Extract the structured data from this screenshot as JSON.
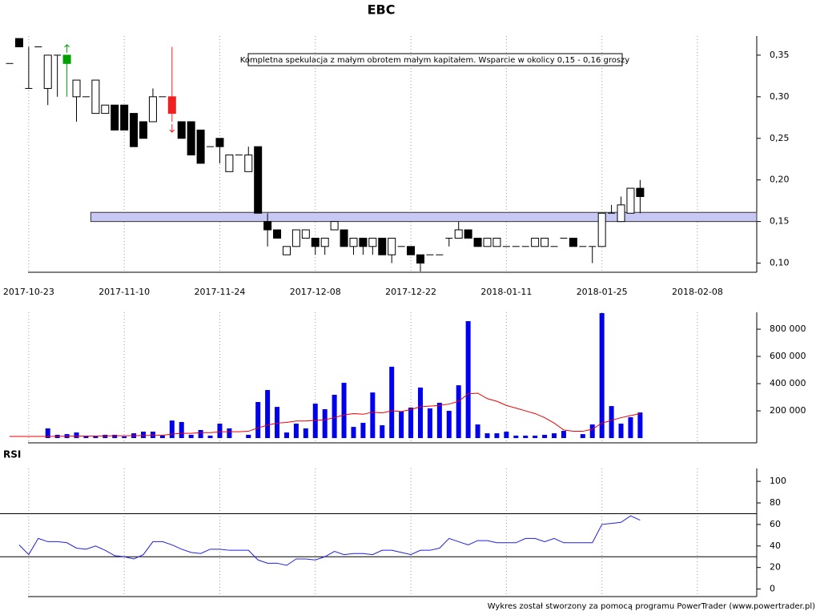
{
  "chart_data": [
    {
      "type": "candlestick",
      "title": "EBC",
      "annotation": "Kompletna spekulacja z małym obrotem małym kapitałem. Wsparcie w okolicy 0,15 - 0,16 groszy",
      "categories": [
        null,
        null,
        "2017-10-23",
        null,
        null,
        null,
        null,
        null,
        null,
        null,
        null,
        null,
        "2017-11-10",
        null,
        null,
        null,
        null,
        null,
        null,
        null,
        null,
        null,
        "2017-11-24",
        null,
        null,
        null,
        null,
        null,
        null,
        null,
        null,
        null,
        "2017-12-08",
        null,
        null,
        null,
        null,
        null,
        null,
        null,
        null,
        null,
        "2017-12-22",
        null,
        null,
        null,
        null,
        null,
        null,
        null,
        null,
        null,
        "2018-01-11",
        null,
        null,
        null,
        null,
        null,
        null,
        null,
        null,
        null,
        "2018-01-25",
        null,
        null,
        null,
        null,
        null,
        null,
        null,
        null,
        null,
        "2018-02-08"
      ],
      "open": [
        0.34,
        0.37,
        0.31,
        0.36,
        0.31,
        0.35,
        0.34,
        0.3,
        0.3,
        0.28,
        0.28,
        0.29,
        0.29,
        0.28,
        0.27,
        0.27,
        0.3,
        0.3,
        0.27,
        0.27,
        0.26,
        0.24,
        0.25,
        0.21,
        0.23,
        0.21,
        0.24,
        0.15,
        0.14,
        0.11,
        0.12,
        0.13,
        0.13,
        0.12,
        0.14,
        0.14,
        0.12,
        0.13,
        0.12,
        0.13,
        0.11,
        0.12,
        0.12,
        0.11,
        0.11,
        0.11,
        0.13,
        0.13,
        0.14,
        0.13,
        0.12,
        0.12,
        0.12,
        0.12,
        0.12,
        0.12,
        0.12,
        0.12,
        0.13,
        0.13,
        0.12,
        0.12,
        0.12,
        0.16,
        0.15,
        0.16,
        0.19,
        null,
        null,
        null,
        null,
        null,
        null
      ],
      "high": [
        0.34,
        0.37,
        0.36,
        0.36,
        0.35,
        0.35,
        0.35,
        0.32,
        0.3,
        0.32,
        0.29,
        0.29,
        0.29,
        0.28,
        0.27,
        0.31,
        0.3,
        0.36,
        0.27,
        0.27,
        0.26,
        0.24,
        0.25,
        0.23,
        0.23,
        0.24,
        0.24,
        0.16,
        0.14,
        0.12,
        0.14,
        0.14,
        0.13,
        0.13,
        0.15,
        0.14,
        0.13,
        0.13,
        0.13,
        0.13,
        0.13,
        0.12,
        0.12,
        0.11,
        0.11,
        0.11,
        0.13,
        0.15,
        0.14,
        0.13,
        0.13,
        0.13,
        0.12,
        0.12,
        0.12,
        0.13,
        0.13,
        0.12,
        0.13,
        0.13,
        0.12,
        0.12,
        0.16,
        0.17,
        0.18,
        0.19,
        0.2,
        null,
        null,
        null,
        null,
        null,
        null
      ],
      "low": [
        0.34,
        0.36,
        0.31,
        0.36,
        0.29,
        0.3,
        0.3,
        0.27,
        0.3,
        0.28,
        0.28,
        0.26,
        0.26,
        0.24,
        0.25,
        0.27,
        0.3,
        0.27,
        0.25,
        0.23,
        0.22,
        0.24,
        0.22,
        0.21,
        0.23,
        0.21,
        0.16,
        0.12,
        0.13,
        0.11,
        0.12,
        0.13,
        0.11,
        0.11,
        0.14,
        0.12,
        0.11,
        0.11,
        0.11,
        0.11,
        0.1,
        0.12,
        0.11,
        0.09,
        0.11,
        0.11,
        0.12,
        0.13,
        0.13,
        0.12,
        0.12,
        0.12,
        0.12,
        0.12,
        0.12,
        0.12,
        0.12,
        0.12,
        0.13,
        0.12,
        0.12,
        0.1,
        0.12,
        0.16,
        0.15,
        0.16,
        0.16,
        null,
        null,
        null,
        null,
        null,
        null
      ],
      "close": [
        0.34,
        0.36,
        0.31,
        0.36,
        0.35,
        0.35,
        0.35,
        0.32,
        0.3,
        0.32,
        0.29,
        0.26,
        0.26,
        0.24,
        0.25,
        0.3,
        0.3,
        0.28,
        0.25,
        0.23,
        0.22,
        0.24,
        0.24,
        0.23,
        0.23,
        0.23,
        0.16,
        0.14,
        0.13,
        0.12,
        0.14,
        0.14,
        0.12,
        0.13,
        0.15,
        0.12,
        0.13,
        0.12,
        0.13,
        0.11,
        0.13,
        0.12,
        0.11,
        0.1,
        0.11,
        0.11,
        0.13,
        0.14,
        0.13,
        0.12,
        0.13,
        0.13,
        0.12,
        0.12,
        0.12,
        0.13,
        0.13,
        0.12,
        0.13,
        0.12,
        0.12,
        0.12,
        0.16,
        0.16,
        0.17,
        0.19,
        0.18,
        null,
        null,
        null,
        null,
        null,
        null
      ],
      "up_color": "#ffffff",
      "down_color": "#000000",
      "signals": [
        {
          "index": 6,
          "color": "#00a000",
          "direction": "up"
        },
        {
          "index": 17,
          "color": "#f02020",
          "direction": "down"
        }
      ],
      "zones": [
        {
          "from": 0.15,
          "to": 0.161,
          "start": 9,
          "color": "#c8c8f4"
        }
      ],
      "ylim": [
        0.089,
        0.373
      ],
      "yticks": [
        {
          "value": 0.1,
          "label": "0,10"
        },
        {
          "value": 0.15,
          "label": "0,15"
        },
        {
          "value": 0.2,
          "label": "0,20"
        },
        {
          "value": 0.25,
          "label": "0,25"
        },
        {
          "value": 0.3,
          "label": "0,30"
        },
        {
          "value": 0.35,
          "label": "0,35"
        }
      ],
      "grid": true
    },
    {
      "type": "bar",
      "series": [
        {
          "type": "bar",
          "color": "#0000ee",
          "values": [
            null,
            null,
            null,
            null,
            71000,
            24000,
            29000,
            41000,
            12000,
            12000,
            24000,
            24000,
            12000,
            35000,
            47000,
            47000,
            18000,
            129000,
            118000,
            24000,
            59000,
            18000,
            106000,
            71000,
            null,
            24000,
            265000,
            353000,
            229000,
            41000,
            106000,
            71000,
            253000,
            212000,
            318000,
            406000,
            82000,
            112000,
            335000,
            94000,
            524000,
            194000,
            224000,
            371000,
            218000,
            259000,
            200000,
            388000,
            859000,
            100000,
            35000,
            35000,
            47000,
            18000,
            18000,
            18000,
            24000,
            35000,
            53000,
            null,
            29000,
            100000,
            918000,
            235000,
            106000,
            153000,
            188000,
            null,
            null,
            null,
            null,
            null,
            null
          ]
        },
        {
          "type": "line",
          "color": "#ee0000",
          "values": [
            12000,
            12000,
            12000,
            12000,
            13000,
            13000,
            14000,
            15000,
            15000,
            15000,
            16000,
            17000,
            17000,
            18000,
            19000,
            20000,
            20000,
            30000,
            35000,
            35000,
            40000,
            40000,
            45000,
            47000,
            47000,
            50000,
            75000,
            95000,
            110000,
            115000,
            125000,
            125000,
            130000,
            135000,
            150000,
            170000,
            180000,
            175000,
            190000,
            185000,
            200000,
            195000,
            210000,
            230000,
            235000,
            240000,
            250000,
            270000,
            325000,
            330000,
            290000,
            270000,
            240000,
            220000,
            200000,
            180000,
            150000,
            110000,
            60000,
            50000,
            50000,
            65000,
            110000,
            130000,
            150000,
            165000,
            180000,
            null,
            null,
            null,
            null,
            null,
            null
          ]
        }
      ],
      "ylim": [
        -35000,
        924000
      ],
      "yticks": [
        {
          "value": 200000,
          "label": "200 000"
        },
        {
          "value": 400000,
          "label": "400 000"
        },
        {
          "value": 600000,
          "label": "600 000"
        },
        {
          "value": 800000,
          "label": "800 000"
        }
      ],
      "grid": true
    },
    {
      "type": "line",
      "title": "RSI",
      "color": "#2020e0",
      "values": [
        null,
        41,
        32,
        47,
        44,
        44,
        43,
        38,
        37,
        40,
        36,
        31,
        30,
        28,
        32,
        44,
        44,
        41,
        37,
        34,
        33,
        37,
        37,
        36,
        36,
        36,
        27,
        24,
        24,
        22,
        28,
        28,
        27,
        30,
        35,
        32,
        33,
        33,
        32,
        36,
        36,
        34,
        32,
        36,
        36,
        38,
        47,
        44,
        41,
        45,
        45,
        43,
        43,
        43,
        47,
        47,
        44,
        47,
        43,
        43,
        43,
        43,
        60,
        61,
        62,
        68,
        64,
        null,
        null,
        null,
        null,
        null,
        null
      ],
      "levels": [
        30,
        70
      ],
      "ylim": [
        -7,
        112
      ],
      "yticks": [
        0,
        20,
        40,
        60,
        80,
        100
      ],
      "grid": true
    }
  ],
  "footer": "Wykres został stworzony za pomocą programu PowerTrader (www.powertrader.pl)"
}
